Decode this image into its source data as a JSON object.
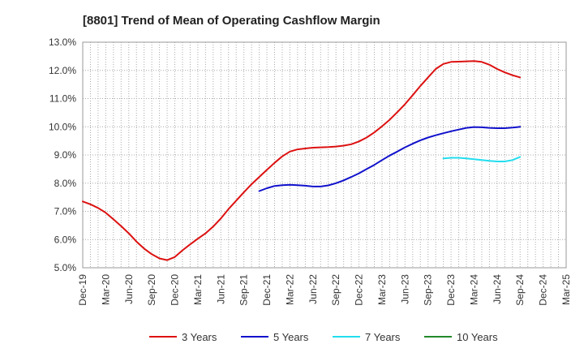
{
  "chart_data": {
    "type": "line",
    "title": "[8801]  Trend of Mean of Operating Cashflow Margin",
    "xlabel": "",
    "ylabel": "",
    "ylim": [
      5.0,
      13.0
    ],
    "y_ticks": [
      "5.0%",
      "6.0%",
      "7.0%",
      "8.0%",
      "9.0%",
      "10.0%",
      "11.0%",
      "12.0%",
      "13.0%"
    ],
    "x_ticks": [
      "Dec-19",
      "Mar-20",
      "Jun-20",
      "Sep-20",
      "Dec-20",
      "Mar-21",
      "Jun-21",
      "Sep-21",
      "Dec-21",
      "Mar-22",
      "Jun-22",
      "Sep-22",
      "Dec-22",
      "Mar-23",
      "Jun-23",
      "Sep-23",
      "Dec-23",
      "Mar-24",
      "Jun-24",
      "Sep-24",
      "Dec-24",
      "Mar-25"
    ],
    "grid": true,
    "legend_position": "bottom",
    "series": [
      {
        "name": "3 Years",
        "color": "#dd1111",
        "values": [
          [
            "Dec-19",
            7.35
          ],
          [
            "Jan-20",
            7.25
          ],
          [
            "Feb-20",
            7.12
          ],
          [
            "Mar-20",
            6.95
          ],
          [
            "Apr-20",
            6.72
          ],
          [
            "May-20",
            6.48
          ],
          [
            "Jun-20",
            6.22
          ],
          [
            "Jul-20",
            5.93
          ],
          [
            "Aug-20",
            5.68
          ],
          [
            "Sep-20",
            5.48
          ],
          [
            "Oct-20",
            5.33
          ],
          [
            "Nov-20",
            5.27
          ],
          [
            "Dec-20",
            5.38
          ],
          [
            "Jan-21",
            5.62
          ],
          [
            "Feb-21",
            5.83
          ],
          [
            "Mar-21",
            6.03
          ],
          [
            "Apr-21",
            6.22
          ],
          [
            "May-21",
            6.46
          ],
          [
            "Jun-21",
            6.75
          ],
          [
            "Jul-21",
            7.08
          ],
          [
            "Aug-21",
            7.38
          ],
          [
            "Sep-21",
            7.68
          ],
          [
            "Oct-21",
            7.96
          ],
          [
            "Nov-21",
            8.22
          ],
          [
            "Dec-21",
            8.47
          ],
          [
            "Jan-22",
            8.72
          ],
          [
            "Feb-22",
            8.95
          ],
          [
            "Mar-22",
            9.12
          ],
          [
            "Apr-22",
            9.2
          ],
          [
            "May-22",
            9.23
          ],
          [
            "Jun-22",
            9.26
          ],
          [
            "Jul-22",
            9.27
          ],
          [
            "Aug-22",
            9.28
          ],
          [
            "Sep-22",
            9.3
          ],
          [
            "Oct-22",
            9.33
          ],
          [
            "Nov-22",
            9.38
          ],
          [
            "Dec-22",
            9.48
          ],
          [
            "Jan-23",
            9.62
          ],
          [
            "Feb-23",
            9.8
          ],
          [
            "Mar-23",
            10.02
          ],
          [
            "Apr-23",
            10.25
          ],
          [
            "May-23",
            10.52
          ],
          [
            "Jun-23",
            10.8
          ],
          [
            "Jul-23",
            11.12
          ],
          [
            "Aug-23",
            11.45
          ],
          [
            "Sep-23",
            11.75
          ],
          [
            "Oct-23",
            12.05
          ],
          [
            "Nov-23",
            12.23
          ],
          [
            "Dec-23",
            12.3
          ],
          [
            "Jan-24",
            12.31
          ],
          [
            "Feb-24",
            12.32
          ],
          [
            "Mar-24",
            12.33
          ],
          [
            "Apr-24",
            12.3
          ],
          [
            "May-24",
            12.2
          ],
          [
            "Jun-24",
            12.05
          ],
          [
            "Jul-24",
            11.93
          ],
          [
            "Aug-24",
            11.83
          ],
          [
            "Sep-24",
            11.75
          ]
        ]
      },
      {
        "name": "5 Years",
        "color": "#1111cc",
        "values": [
          [
            "Nov-21",
            7.72
          ],
          [
            "Dec-21",
            7.82
          ],
          [
            "Jan-22",
            7.9
          ],
          [
            "Feb-22",
            7.93
          ],
          [
            "Mar-22",
            7.94
          ],
          [
            "Apr-22",
            7.93
          ],
          [
            "May-22",
            7.91
          ],
          [
            "Jun-22",
            7.88
          ],
          [
            "Jul-22",
            7.88
          ],
          [
            "Aug-22",
            7.92
          ],
          [
            "Sep-22",
            8.0
          ],
          [
            "Oct-22",
            8.1
          ],
          [
            "Nov-22",
            8.22
          ],
          [
            "Dec-22",
            8.35
          ],
          [
            "Jan-23",
            8.5
          ],
          [
            "Feb-23",
            8.65
          ],
          [
            "Mar-23",
            8.82
          ],
          [
            "Apr-23",
            8.98
          ],
          [
            "May-23",
            9.12
          ],
          [
            "Jun-23",
            9.27
          ],
          [
            "Jul-23",
            9.4
          ],
          [
            "Aug-23",
            9.52
          ],
          [
            "Sep-23",
            9.62
          ],
          [
            "Oct-23",
            9.7
          ],
          [
            "Nov-23",
            9.77
          ],
          [
            "Dec-23",
            9.84
          ],
          [
            "Jan-24",
            9.9
          ],
          [
            "Feb-24",
            9.96
          ],
          [
            "Mar-24",
            9.99
          ],
          [
            "Apr-24",
            9.98
          ],
          [
            "May-24",
            9.96
          ],
          [
            "Jun-24",
            9.95
          ],
          [
            "Jul-24",
            9.95
          ],
          [
            "Aug-24",
            9.97
          ],
          [
            "Sep-24",
            10.0
          ]
        ]
      },
      {
        "name": "7 Years",
        "color": "#22ddee",
        "values": [
          [
            "Nov-23",
            8.88
          ],
          [
            "Dec-23",
            8.9
          ],
          [
            "Jan-24",
            8.9
          ],
          [
            "Feb-24",
            8.88
          ],
          [
            "Mar-24",
            8.85
          ],
          [
            "Apr-24",
            8.82
          ],
          [
            "May-24",
            8.79
          ],
          [
            "Jun-24",
            8.77
          ],
          [
            "Jul-24",
            8.77
          ],
          [
            "Aug-24",
            8.82
          ],
          [
            "Sep-24",
            8.93
          ]
        ]
      },
      {
        "name": "10 Years",
        "color": "#22882a",
        "values": []
      }
    ]
  }
}
